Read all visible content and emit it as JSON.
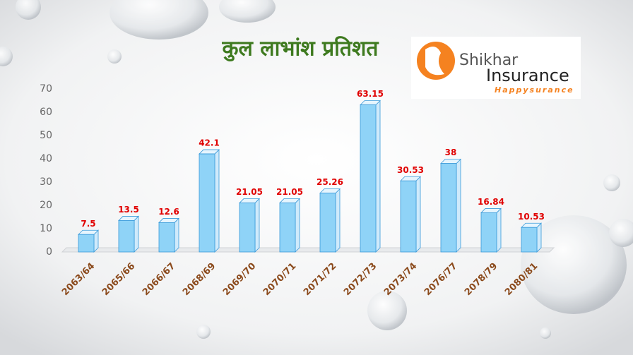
{
  "chart_data": {
    "type": "bar",
    "title": "कुल लाभांश प्रतिशत",
    "categories": [
      "2063/64",
      "2065/66",
      "2066/67",
      "2068/69",
      "2069/70",
      "2070/71",
      "2071/72",
      "2072/73",
      "2073/74",
      "2076/77",
      "2078/79",
      "2080/81"
    ],
    "values": [
      7.5,
      13.5,
      12.6,
      42.1,
      21.05,
      21.05,
      25.26,
      63.15,
      30.53,
      38,
      16.84,
      10.53
    ],
    "color": "#8fd3f7",
    "ylim": [
      0,
      70
    ],
    "yticks": [
      0,
      10,
      20,
      30,
      40,
      50,
      60,
      70
    ],
    "grid": false
  },
  "logo": {
    "line1": "Shikhar",
    "line2": "Insurance",
    "tagline": "Happysurance"
  }
}
